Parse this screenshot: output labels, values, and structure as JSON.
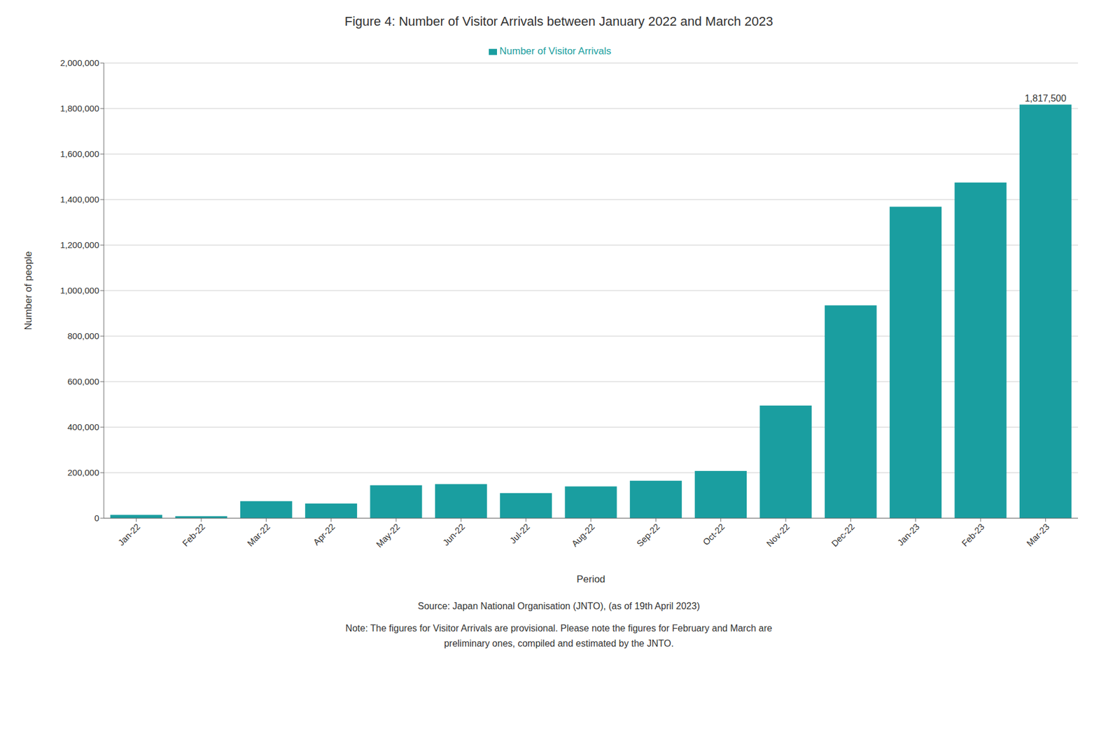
{
  "chart_data": {
    "type": "bar",
    "title": "Figure 4: Number of Visitor Arrivals between January 2022 and March 2023",
    "categories": [
      "Jan-22",
      "Feb-22",
      "Mar-22",
      "Apr-22",
      "May-22",
      "Jun-22",
      "Jul-22",
      "Aug-22",
      "Sep-22",
      "Oct-22",
      "Nov-22",
      "Dec-22",
      "Jan-23",
      "Feb-23",
      "Mar-23"
    ],
    "values": [
      15000,
      9000,
      75000,
      65000,
      145000,
      150000,
      110000,
      140000,
      165000,
      208000,
      495000,
      935000,
      1368500,
      1475000,
      1817500
    ],
    "series_name": "Number of Visitor Arrivals",
    "color": "#1A9EA0",
    "xlabel": "Period",
    "ylabel": "Number of people",
    "ylim": [
      0,
      2000000
    ],
    "yticks": [
      0,
      {
        "value": 200000,
        "label": "200,000"
      },
      {
        "value": 400000,
        "label": "400,000"
      },
      {
        "value": 600000,
        "label": "600,000"
      },
      {
        "value": 800000,
        "label": "800,000"
      },
      {
        "value": 1000000,
        "label": "1,000,000"
      },
      {
        "value": 1200000,
        "label": "1,200,000"
      },
      {
        "value": 1400000,
        "label": "1,400,000"
      },
      {
        "value": 1600000,
        "label": "1,600,000"
      },
      {
        "value": 1800000,
        "label": "1,800,000"
      },
      {
        "value": 2000000,
        "label": "2,000,000"
      }
    ],
    "grid": true,
    "legend": "top",
    "annotations": [
      {
        "x": "Mar-23",
        "value": 1817500,
        "label": "1,817,500"
      }
    ],
    "footer": [
      "Source: Japan National Organisation (JNTO), (as of 19th April 2023)",
      "Note: The figures for Visitor Arrivals are provisional. Please note the figures for February and March are",
      "preliminary ones, compiled and estimated by the JNTO."
    ]
  }
}
